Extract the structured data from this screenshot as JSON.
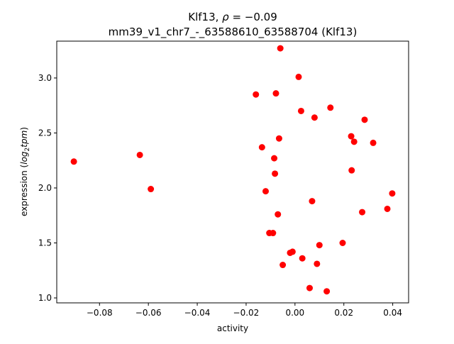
{
  "chart_data": {
    "type": "scatter",
    "title_line1": "Klf13, ",
    "title_rho_symbol": "ρ",
    "title_rho_value": " = −0.09",
    "title_line2": "mm39_v1_chr7_-_63588610_63588704 (Klf13)",
    "xlabel": "activity",
    "ylabel_prefix": "expression (",
    "ylabel_log": "log",
    "ylabel_sub": "2",
    "ylabel_tpm": "tpm",
    "ylabel_suffix": ")",
    "xlim": [
      -0.0975,
      0.0465
    ],
    "ylim": [
      0.955,
      3.335
    ],
    "xticks": [
      {
        "value": -0.08,
        "label": "−0.08"
      },
      {
        "value": -0.06,
        "label": "−0.06"
      },
      {
        "value": -0.04,
        "label": "−0.04"
      },
      {
        "value": -0.02,
        "label": "−0.02"
      },
      {
        "value": 0.0,
        "label": "0.00"
      },
      {
        "value": 0.02,
        "label": "0.02"
      },
      {
        "value": 0.04,
        "label": "0.04"
      }
    ],
    "yticks": [
      {
        "value": 1.0,
        "label": "1.0"
      },
      {
        "value": 1.5,
        "label": "1.5"
      },
      {
        "value": 2.0,
        "label": "2.0"
      },
      {
        "value": 2.5,
        "label": "2.5"
      },
      {
        "value": 3.0,
        "label": "3.0"
      }
    ],
    "marker_color": "#ff0000",
    "points": [
      {
        "x": -0.0905,
        "y": 2.24
      },
      {
        "x": -0.0635,
        "y": 2.3
      },
      {
        "x": -0.059,
        "y": 1.99
      },
      {
        "x": -0.016,
        "y": 2.85
      },
      {
        "x": -0.0135,
        "y": 2.37
      },
      {
        "x": -0.012,
        "y": 1.97
      },
      {
        "x": -0.0105,
        "y": 1.59
      },
      {
        "x": -0.009,
        "y": 1.59
      },
      {
        "x": -0.0085,
        "y": 2.27
      },
      {
        "x": -0.0082,
        "y": 2.13
      },
      {
        "x": -0.0078,
        "y": 2.86
      },
      {
        "x": -0.007,
        "y": 1.76
      },
      {
        "x": -0.0065,
        "y": 2.45
      },
      {
        "x": -0.006,
        "y": 3.27
      },
      {
        "x": -0.005,
        "y": 1.3
      },
      {
        "x": -0.002,
        "y": 1.41
      },
      {
        "x": -0.001,
        "y": 1.42
      },
      {
        "x": 0.0015,
        "y": 3.01
      },
      {
        "x": 0.0025,
        "y": 2.7
      },
      {
        "x": 0.003,
        "y": 1.36
      },
      {
        "x": 0.006,
        "y": 1.09
      },
      {
        "x": 0.007,
        "y": 1.88
      },
      {
        "x": 0.008,
        "y": 2.64
      },
      {
        "x": 0.009,
        "y": 1.31
      },
      {
        "x": 0.01,
        "y": 1.48
      },
      {
        "x": 0.013,
        "y": 1.06
      },
      {
        "x": 0.0145,
        "y": 2.73
      },
      {
        "x": 0.0195,
        "y": 1.5
      },
      {
        "x": 0.023,
        "y": 2.47
      },
      {
        "x": 0.0232,
        "y": 2.16
      },
      {
        "x": 0.0242,
        "y": 2.42
      },
      {
        "x": 0.0275,
        "y": 1.78
      },
      {
        "x": 0.0285,
        "y": 2.62
      },
      {
        "x": 0.032,
        "y": 2.41
      },
      {
        "x": 0.0378,
        "y": 1.81
      },
      {
        "x": 0.0398,
        "y": 1.95
      }
    ]
  }
}
